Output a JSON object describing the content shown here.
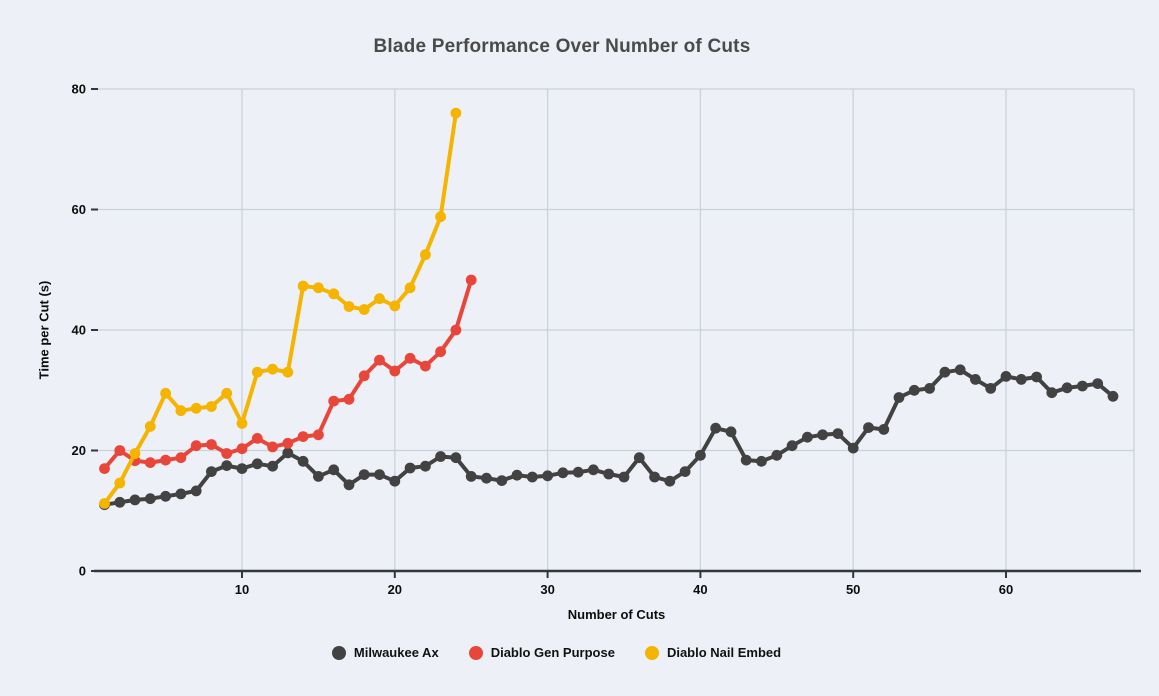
{
  "title": "Blade Performance Over Number of Cuts",
  "x_axis": {
    "label": "Number of Cuts",
    "ticks": [
      10,
      20,
      30,
      40,
      50,
      60
    ]
  },
  "y_axis": {
    "label": "Time per Cut (s)",
    "ticks": [
      0,
      20,
      40,
      60,
      80
    ]
  },
  "colors": {
    "background": "#edf1f7",
    "gridline": "#ccd1d9",
    "axis_line": "#32373c",
    "tick_label": "#0d0d0d",
    "title": "#4a4a4a"
  },
  "chart_data": {
    "type": "line",
    "title": "Blade Performance Over Number of Cuts",
    "xlabel": "Number of Cuts",
    "ylabel": "Time per Cut (s)",
    "xlim": [
      0.4,
      68.4
    ],
    "ylim": [
      0,
      80
    ],
    "grid": true,
    "legend_position": "bottom",
    "x_start": 1,
    "series": [
      {
        "name": "Milwaukee Ax",
        "color": "#424242",
        "x": [
          1,
          2,
          3,
          4,
          5,
          6,
          7,
          8,
          9,
          10,
          11,
          12,
          13,
          14,
          15,
          16,
          17,
          18,
          19,
          20,
          21,
          22,
          23,
          24,
          25,
          26,
          27,
          28,
          29,
          30,
          31,
          32,
          33,
          34,
          35,
          36,
          37,
          38,
          39,
          40,
          41,
          42,
          43,
          44,
          45,
          46,
          47,
          48,
          49,
          50,
          51,
          52,
          53,
          54,
          55,
          56,
          57,
          58,
          59,
          60,
          61,
          62,
          63,
          64,
          65,
          66,
          67
        ],
        "values": [
          11,
          11.4,
          11.8,
          12,
          12.4,
          12.8,
          13.3,
          16.5,
          17.5,
          17,
          17.8,
          17.4,
          19.6,
          18.2,
          15.7,
          16.8,
          14.3,
          16,
          16,
          14.9,
          17.1,
          17.4,
          19,
          18.8,
          15.7,
          15.4,
          15,
          15.9,
          15.6,
          15.8,
          16.3,
          16.4,
          16.8,
          16.1,
          15.6,
          18.8,
          15.6,
          14.9,
          16.5,
          19.2,
          23.7,
          23.1,
          18.4,
          18.2,
          19.2,
          20.8,
          22.2,
          22.6,
          22.8,
          20.4,
          23.8,
          23.5,
          28.8,
          30,
          30.3,
          33,
          33.4,
          31.8,
          30.3,
          32.3,
          31.8,
          32.2,
          29.6,
          30.4,
          30.7,
          31.1,
          29
        ]
      },
      {
        "name": "Diablo Gen Purpose",
        "color": "#e8463a",
        "x": [
          1,
          2,
          3,
          4,
          5,
          6,
          7,
          8,
          9,
          10,
          11,
          12,
          13,
          14,
          15,
          16,
          17,
          18,
          19,
          20,
          21,
          22,
          23,
          24,
          25
        ],
        "values": [
          17,
          20,
          18.3,
          18,
          18.4,
          18.8,
          20.8,
          21,
          19.5,
          20.3,
          22,
          20.6,
          21.2,
          22.3,
          22.6,
          28.2,
          28.5,
          32.4,
          35,
          33.2,
          35.3,
          34,
          36.4,
          40,
          48.3
        ]
      },
      {
        "name": "Diablo Nail Embed",
        "color": "#f4b400",
        "x": [
          1,
          2,
          3,
          4,
          5,
          6,
          7,
          8,
          9,
          10,
          11,
          12,
          13,
          14,
          15,
          16,
          17,
          18,
          19,
          20,
          21,
          22,
          23,
          24
        ],
        "values": [
          11.2,
          14.6,
          19.5,
          24,
          29.5,
          26.6,
          27,
          27.3,
          29.5,
          24.5,
          33,
          33.5,
          33,
          47.3,
          47,
          46,
          43.9,
          43.4,
          45.2,
          44,
          47,
          52.5,
          58.8,
          76
        ]
      }
    ]
  }
}
